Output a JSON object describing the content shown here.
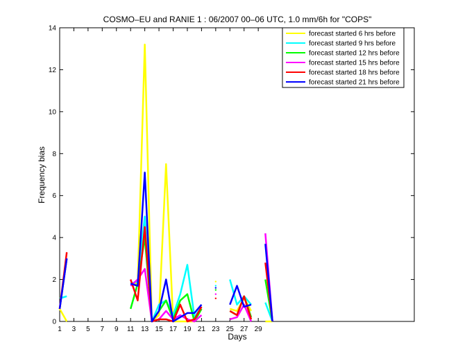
{
  "chart_data": {
    "type": "line",
    "title": "COSMO–EU and RANIE 1 : 06/2007 00–06 UTC, 1.0 mm/6h for \"COPS\"",
    "xlabel": "Days",
    "ylabel": "Frequency bias",
    "xlim": [
      1,
      51
    ],
    "ylim": [
      0,
      14
    ],
    "xticks": [
      1,
      3,
      5,
      7,
      9,
      11,
      13,
      15,
      17,
      19,
      21,
      23,
      25,
      27,
      29
    ],
    "yticks": [
      0,
      2,
      4,
      6,
      8,
      10,
      12,
      14
    ],
    "grid": false,
    "legend_position": "top-right",
    "x": [
      1,
      2,
      3,
      4,
      5,
      6,
      7,
      8,
      9,
      10,
      11,
      12,
      13,
      14,
      15,
      16,
      17,
      18,
      19,
      20,
      21,
      22,
      23,
      24,
      25,
      26,
      27,
      28,
      29,
      30,
      31
    ],
    "series": [
      {
        "name": "forecast started 6 hrs before",
        "color": "#ffff00",
        "values": [
          0.6,
          0,
          null,
          null,
          null,
          null,
          null,
          null,
          null,
          null,
          1.8,
          1.8,
          13.2,
          0,
          0.3,
          7.5,
          0,
          0,
          0,
          0,
          0.6,
          null,
          1.9,
          null,
          0.6,
          0.5,
          1.1,
          0.5,
          null,
          0,
          0
        ]
      },
      {
        "name": "forecast started 9 hrs before",
        "color": "#00ffff",
        "values": [
          1.1,
          1.2,
          null,
          null,
          null,
          null,
          null,
          null,
          null,
          null,
          1.8,
          1.9,
          5,
          0,
          0.8,
          1,
          0.3,
          1.3,
          2.7,
          0.2,
          0.7,
          null,
          1.7,
          null,
          2,
          0.8,
          1.2,
          0.8,
          null,
          0.9,
          0
        ]
      },
      {
        "name": "forecast started 12 hrs before",
        "color": "#00ff00",
        "values": [
          0.6,
          3,
          null,
          null,
          null,
          null,
          null,
          null,
          null,
          null,
          0.6,
          1.8,
          4,
          0,
          0.5,
          1,
          0.1,
          1,
          1.3,
          0,
          0.6,
          null,
          1.5,
          null,
          0.5,
          0.3,
          1.2,
          0.2,
          null,
          2,
          0
        ]
      },
      {
        "name": "forecast started 15 hrs before",
        "color": "#ff00ff",
        "values": [
          0.6,
          3,
          null,
          null,
          null,
          null,
          null,
          null,
          null,
          null,
          1.7,
          2,
          2.5,
          0,
          0.1,
          0.5,
          0.1,
          0.3,
          0.1,
          0,
          0.3,
          null,
          1.3,
          null,
          0.1,
          0.2,
          0.8,
          0,
          null,
          4.2,
          0
        ]
      },
      {
        "name": "forecast started 18 hrs before",
        "color": "#ff0000",
        "values": [
          0.6,
          3.3,
          null,
          null,
          null,
          null,
          null,
          null,
          null,
          null,
          2,
          1,
          4.5,
          0,
          0.1,
          0.1,
          0,
          0.8,
          0,
          0.1,
          0.7,
          null,
          1.1,
          null,
          0.5,
          0.3,
          1.2,
          0.1,
          null,
          2.8,
          0
        ]
      },
      {
        "name": "forecast started 21 hrs before",
        "color": "#0000ff",
        "values": [
          0.6,
          3,
          null,
          null,
          null,
          null,
          null,
          null,
          null,
          null,
          1.8,
          1.7,
          7.1,
          0,
          0.5,
          2,
          0,
          0.2,
          0.4,
          0.4,
          0.8,
          null,
          1.6,
          null,
          0.8,
          1.7,
          0.7,
          0.8,
          null,
          3.7,
          0
        ]
      }
    ]
  }
}
